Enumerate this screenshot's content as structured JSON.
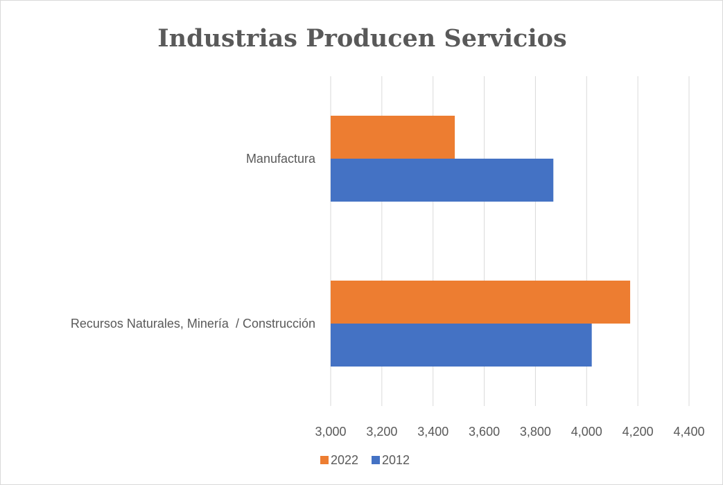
{
  "chart_data": {
    "type": "bar",
    "orientation": "horizontal",
    "title": "Industrias Producen Servicios",
    "categories": [
      "Recursos Naturales, Minería  / Construcción",
      "Manufactura"
    ],
    "series": [
      {
        "name": "2012",
        "color": "#4472c4",
        "values": [
          4020,
          3870
        ]
      },
      {
        "name": "2022",
        "color": "#ed7d31",
        "values": [
          4170,
          3485
        ]
      }
    ],
    "xlim": [
      3000,
      4400
    ],
    "xticks": [
      3000,
      3200,
      3400,
      3600,
      3800,
      4000,
      4200,
      4400
    ],
    "tick_labels": [
      "3,000",
      "3,200",
      "3,400",
      "3,600",
      "3,800",
      "4,000",
      "4,200",
      "4,400"
    ],
    "grid": "vertical",
    "legend_position": "bottom",
    "legend": [
      "2022",
      "2012"
    ]
  }
}
